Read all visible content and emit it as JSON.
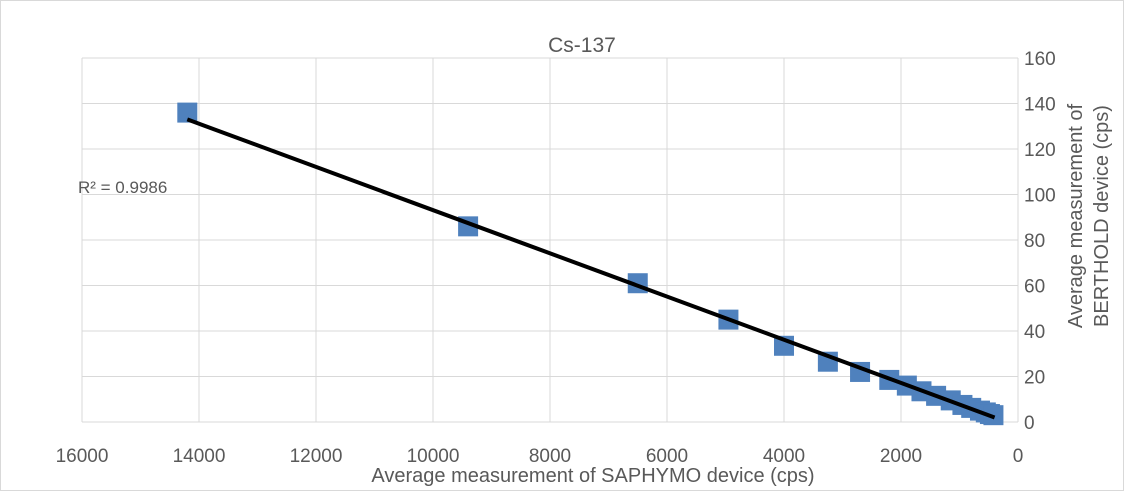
{
  "chart_data": {
    "type": "scatter",
    "title": "Cs-137",
    "xlabel": "Average measurement  of SAPHYMO device (cps)",
    "ylabel_line1": "Average measurement of",
    "ylabel_line2": "BERTHOLD device (cps)",
    "xlim": [
      0,
      16000
    ],
    "ylim": [
      0,
      160
    ],
    "x_reversed": true,
    "y_axis_position": "right",
    "x_ticks": [
      16000,
      14000,
      12000,
      10000,
      8000,
      6000,
      4000,
      2000,
      0
    ],
    "y_ticks": [
      0,
      20,
      40,
      60,
      80,
      100,
      120,
      140,
      160
    ],
    "grid": true,
    "marker": "square",
    "series_color": "#4f81bd",
    "trendline_color": "#000000",
    "points": [
      {
        "x": 14200,
        "y": 136
      },
      {
        "x": 9400,
        "y": 86
      },
      {
        "x": 6500,
        "y": 61
      },
      {
        "x": 4950,
        "y": 45
      },
      {
        "x": 4000,
        "y": 33.5
      },
      {
        "x": 3250,
        "y": 26.5
      },
      {
        "x": 2700,
        "y": 22
      },
      {
        "x": 2200,
        "y": 18.5
      },
      {
        "x": 1900,
        "y": 16
      },
      {
        "x": 1650,
        "y": 13.5
      },
      {
        "x": 1400,
        "y": 11.5
      },
      {
        "x": 1150,
        "y": 9.5
      },
      {
        "x": 950,
        "y": 7.5
      },
      {
        "x": 800,
        "y": 6.2
      },
      {
        "x": 650,
        "y": 5
      },
      {
        "x": 550,
        "y": 4.2
      },
      {
        "x": 480,
        "y": 3.5
      },
      {
        "x": 420,
        "y": 3
      }
    ],
    "trendline": {
      "x_start": 14200,
      "y_start": 133,
      "x_end": 400,
      "y_end": 2,
      "r_squared_label": "R² = 0.9986"
    }
  }
}
